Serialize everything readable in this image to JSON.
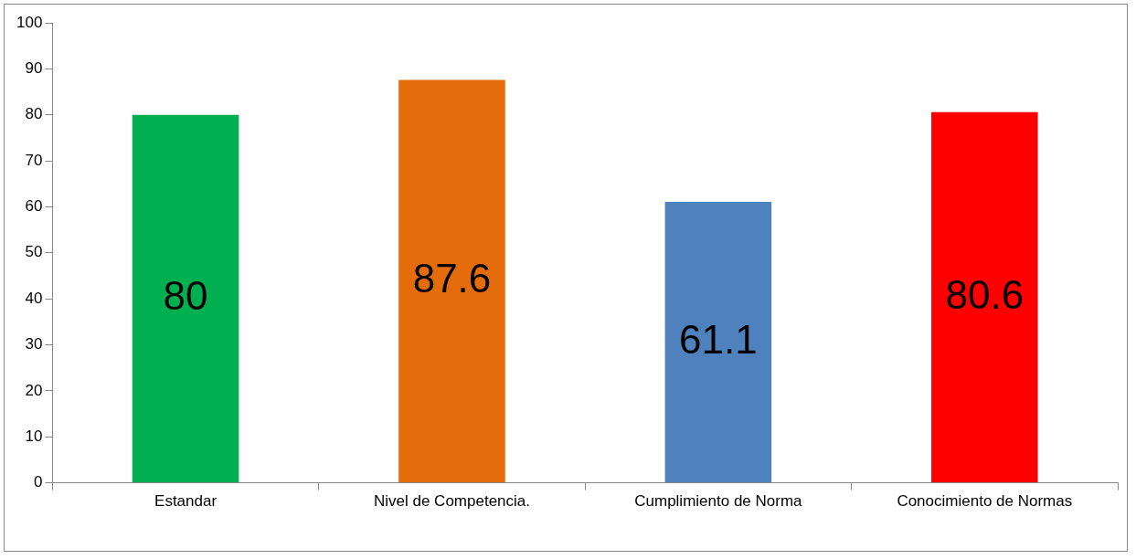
{
  "chart_data": {
    "type": "bar",
    "categories": [
      "Estandar",
      "Nivel de Competencia.",
      "Cumplimiento de Norma",
      "Conocimiento de Normas"
    ],
    "values": [
      80,
      87.6,
      61.1,
      80.6
    ],
    "colors": [
      "#00b050",
      "#e46c0a",
      "#4f81bd",
      "#ff0000"
    ],
    "ylim": [
      0,
      100
    ],
    "yticks": [
      0,
      10,
      20,
      30,
      40,
      50,
      60,
      70,
      80,
      90,
      100
    ],
    "grid": false,
    "legend": false,
    "data_labels": true
  }
}
